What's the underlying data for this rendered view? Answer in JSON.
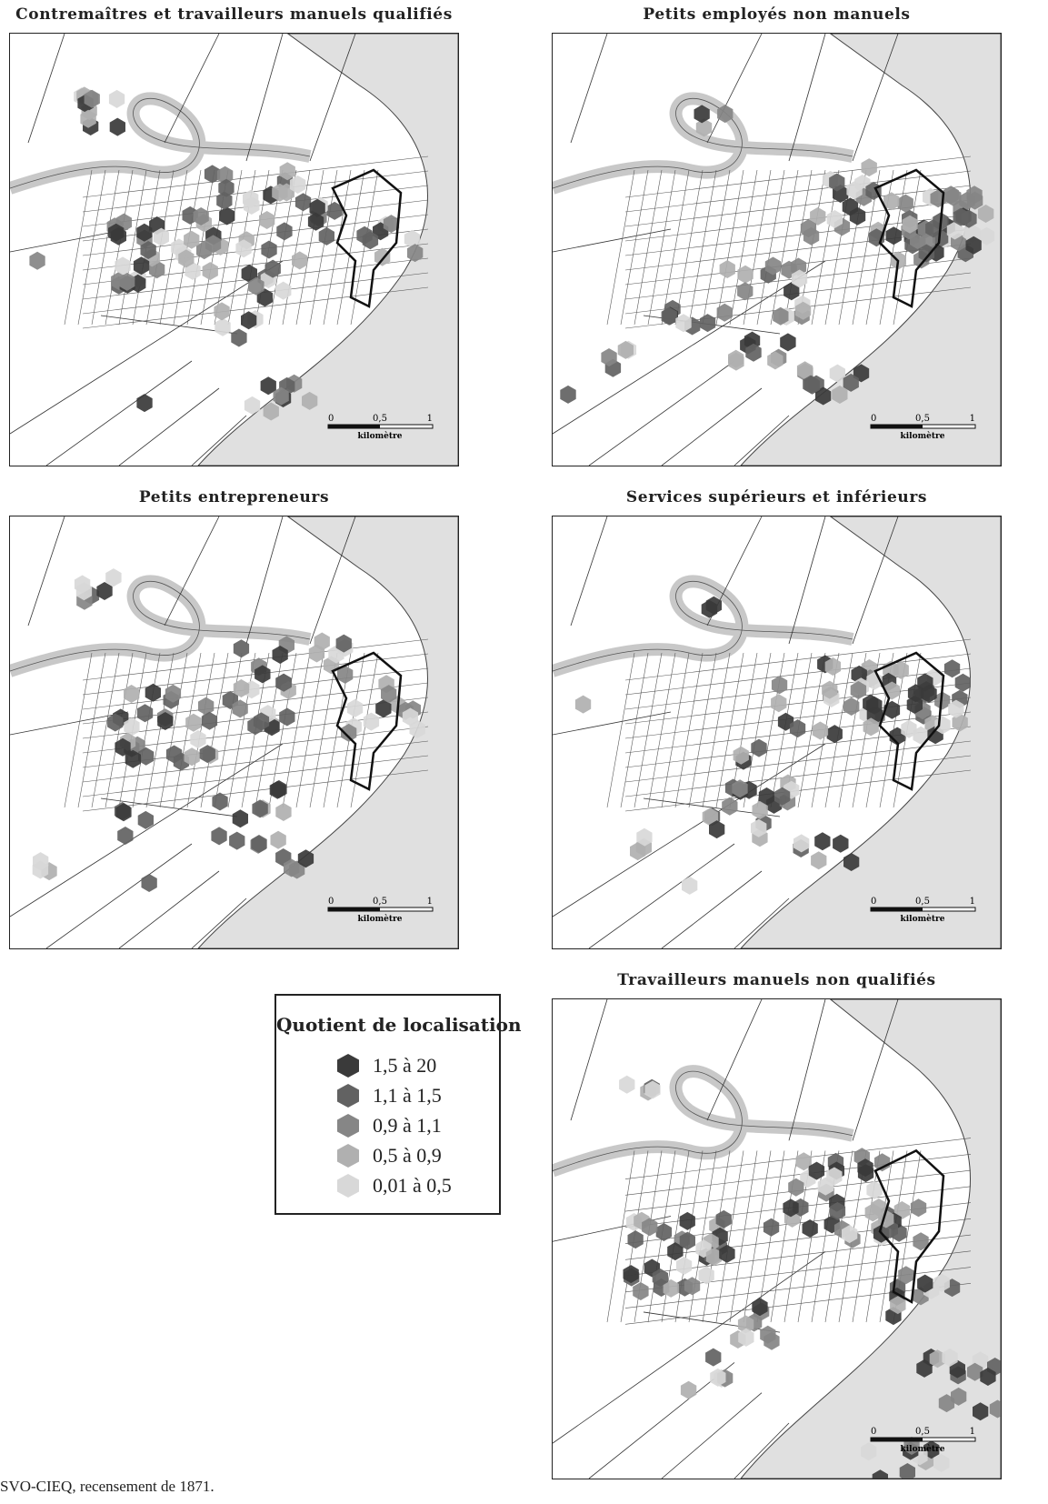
{
  "panels": [
    {
      "title": "Contremaîtres et travailleurs manuels qualifiés",
      "scale": {
        "t0": "0",
        "t1": "0,5",
        "t2": "1",
        "unit": "kilomètre"
      }
    },
    {
      "title": "Petits employés non manuels",
      "scale": {
        "t0": "0",
        "t1": "0,5",
        "t2": "1",
        "unit": "kilomètre"
      }
    },
    {
      "title": "Petits entrepreneurs",
      "scale": {
        "t0": "0",
        "t1": "0,5",
        "t2": "1",
        "unit": "kilomètre"
      }
    },
    {
      "title": "Services supérieurs et inférieurs",
      "scale": {
        "t0": "0",
        "t1": "0,5",
        "t2": "1",
        "unit": "kilomètre"
      }
    },
    {
      "title": "Travailleurs manuels non qualifiés",
      "scale": {
        "t0": "0",
        "t1": "0,5",
        "t2": "1",
        "unit": "kilomètre"
      }
    }
  ],
  "legend": {
    "title": "Quotient de localisation",
    "classes": [
      {
        "label": "1,5 à 20",
        "color": "#3a3a3a"
      },
      {
        "label": "1,1 à 1,5",
        "color": "#626262"
      },
      {
        "label": "0,9 à 1,1",
        "color": "#868686"
      },
      {
        "label": "0,5 à 0,9",
        "color": "#b0b0b0"
      },
      {
        "label": "0,01 à 0,5",
        "color": "#d8d8d8"
      }
    ]
  },
  "source": "SVO-CIEQ, recensement de 1871."
}
